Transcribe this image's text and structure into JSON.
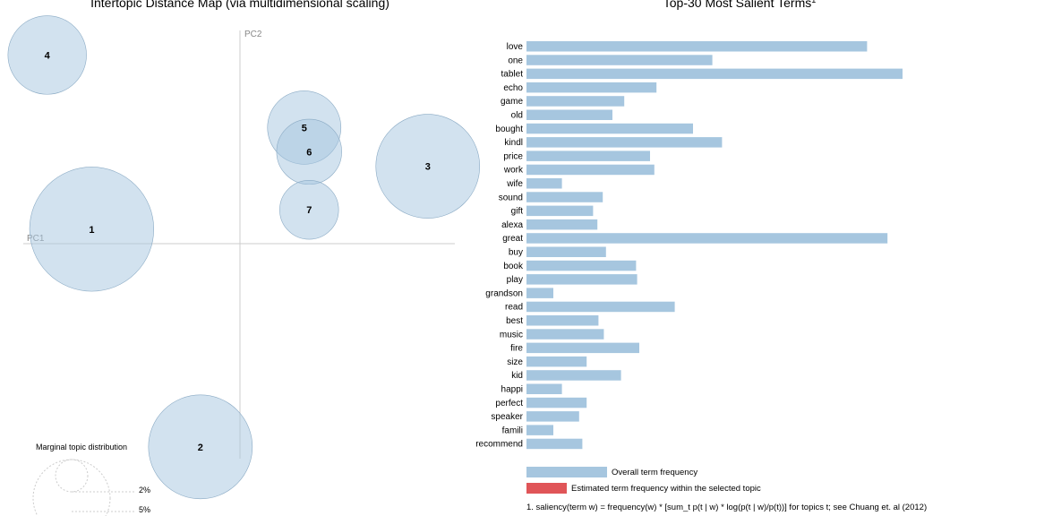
{
  "chart_data": [
    {
      "type": "scatter",
      "title": "Intertopic Distance Map (via multidimensional scaling)",
      "xlabel": "PC1",
      "ylabel": "PC2",
      "topics": [
        {
          "label": "1",
          "pc1": -0.3,
          "pc2": 0.03,
          "size": 20
        },
        {
          "label": "2",
          "pc1": -0.08,
          "pc2": -0.42,
          "size": 14
        },
        {
          "label": "3",
          "pc1": 0.38,
          "pc2": 0.16,
          "size": 14
        },
        {
          "label": "4",
          "pc1": -0.39,
          "pc2": 0.39,
          "size": 8
        },
        {
          "label": "5",
          "pc1": 0.13,
          "pc2": 0.24,
          "size": 7
        },
        {
          "label": "6",
          "pc1": 0.14,
          "pc2": 0.19,
          "size": 5.5
        },
        {
          "label": "7",
          "pc1": 0.14,
          "pc2": 0.07,
          "size": 4.5
        }
      ],
      "marginal": {
        "title": "Marginal topic distribution",
        "levels": [
          "2%",
          "5%"
        ]
      }
    },
    {
      "type": "bar",
      "title": "Top-30 Most Salient Terms",
      "title_mark": "1",
      "categories": [
        "love",
        "one",
        "tablet",
        "echo",
        "game",
        "old",
        "bought",
        "kindl",
        "price",
        "work",
        "wife",
        "sound",
        "gift",
        "alexa",
        "great",
        "buy",
        "book",
        "play",
        "grandson",
        "read",
        "best",
        "music",
        "fire",
        "size",
        "kid",
        "happi",
        "perfect",
        "speaker",
        "famili",
        "recommend"
      ],
      "values": [
        3170,
        1730,
        3500,
        1210,
        910,
        800,
        1550,
        1820,
        1150,
        1190,
        330,
        710,
        620,
        660,
        3360,
        740,
        1020,
        1030,
        250,
        1380,
        670,
        720,
        1050,
        560,
        880,
        330,
        560,
        490,
        250,
        520
      ],
      "legend": [
        {
          "label": "Overall term frequency",
          "color": "#a6c6df"
        },
        {
          "label": "Estimated term frequency within the selected topic",
          "color": "#e05558"
        }
      ],
      "footnote": "1. saliency(term w) = frequency(w) * [sum_t p(t | w) * log(p(t | w)/p(t))] for topics t; see Chuang et. al (2012)"
    }
  ]
}
